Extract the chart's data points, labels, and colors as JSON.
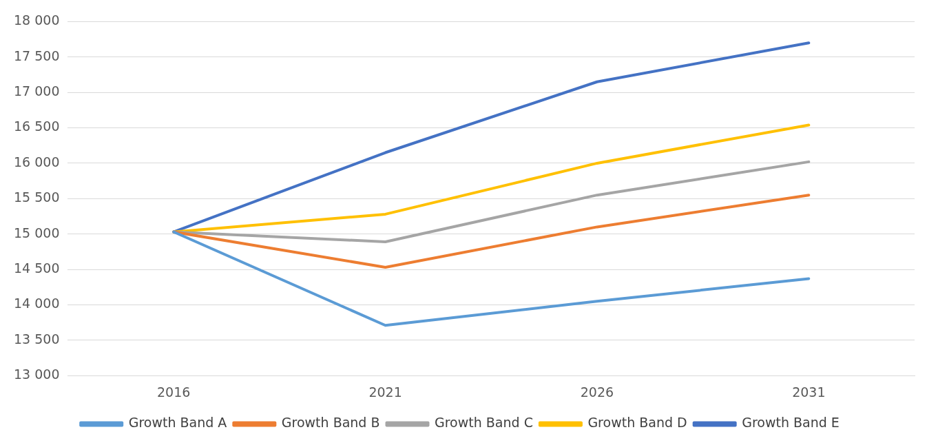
{
  "chart_data": {
    "type": "line",
    "categories": [
      "2016",
      "2021",
      "2026",
      "2031"
    ],
    "series": [
      {
        "name": "Growth Band A",
        "color": "#5b9bd5",
        "values": [
          15030,
          13710,
          14050,
          14370
        ]
      },
      {
        "name": "Growth Band B",
        "color": "#ed7d31",
        "values": [
          15030,
          14530,
          15100,
          15550
        ]
      },
      {
        "name": "Growth Band C",
        "color": "#a5a5a5",
        "values": [
          15030,
          14890,
          15550,
          16020
        ]
      },
      {
        "name": "Growth Band D",
        "color": "#ffc000",
        "values": [
          15030,
          15280,
          16000,
          16540
        ]
      },
      {
        "name": "Growth Band E",
        "color": "#4472c4",
        "values": [
          15030,
          16150,
          17150,
          17700
        ]
      }
    ],
    "ylim": [
      13000,
      18000
    ],
    "yticks": [
      {
        "value": 13000,
        "label": "13 000"
      },
      {
        "value": 13500,
        "label": "13 500"
      },
      {
        "value": 14000,
        "label": "14 000"
      },
      {
        "value": 14500,
        "label": "14 500"
      },
      {
        "value": 15000,
        "label": "15 000"
      },
      {
        "value": 15500,
        "label": "15 500"
      },
      {
        "value": 16000,
        "label": "16 000"
      },
      {
        "value": 16500,
        "label": "16 500"
      },
      {
        "value": 17000,
        "label": "17 000"
      },
      {
        "value": 17500,
        "label": "17 500"
      },
      {
        "value": 18000,
        "label": "18 000"
      }
    ],
    "grid": "y",
    "legend": "bottom",
    "marker": "none",
    "line_style": "solid"
  }
}
